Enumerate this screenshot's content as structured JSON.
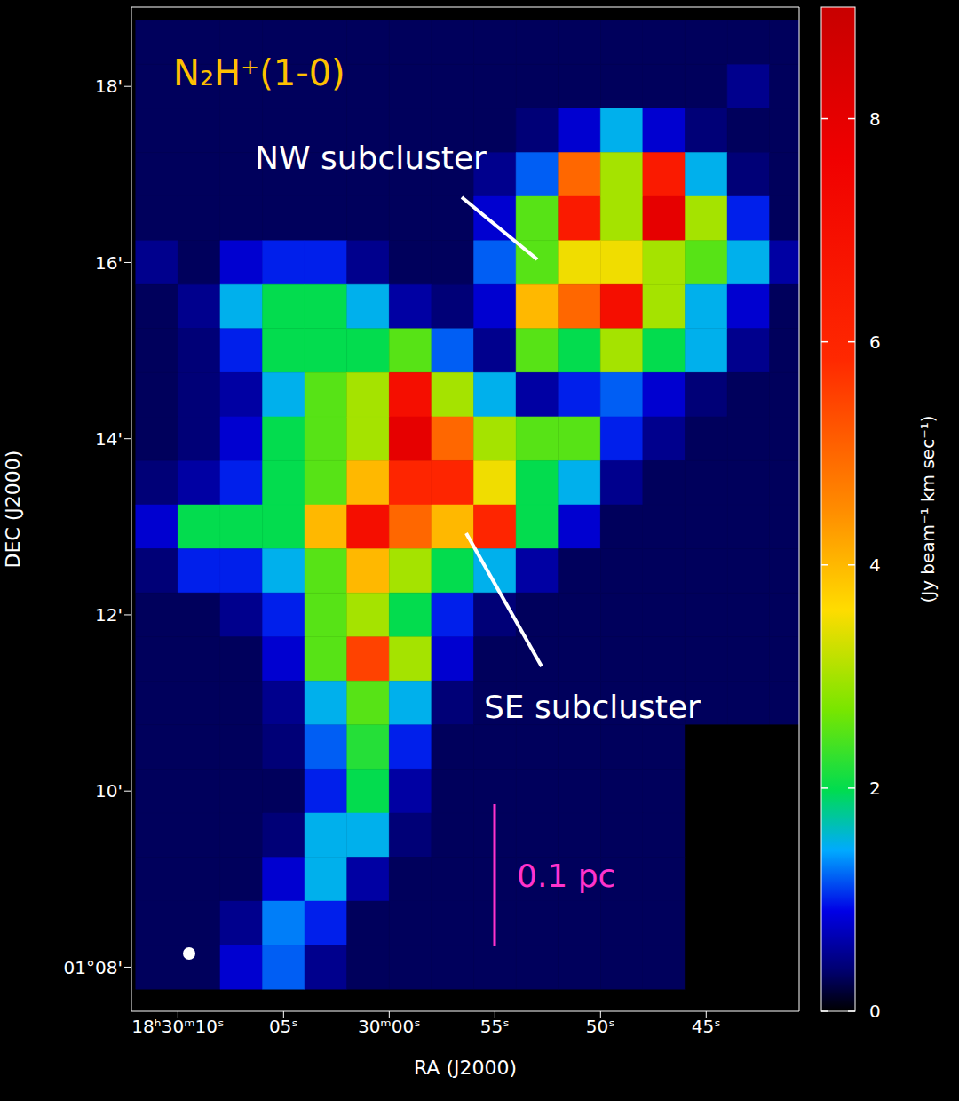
{
  "chart_data": {
    "type": "heatmap",
    "title": "N₂H⁺(1-0)",
    "x_label": "RA (J2000)",
    "y_label": "DEC (J2000)",
    "xlim": [
      72.2,
      40.6
    ],
    "ylim": [
      7.5,
      18.9
    ],
    "xticks": [
      {
        "value": 70,
        "label": "18ʰ30ᵐ10ˢ"
      },
      {
        "value": 65,
        "label": "05ˢ"
      },
      {
        "value": 60,
        "label": "30ᵐ00ˢ"
      },
      {
        "value": 55,
        "label": "55ˢ"
      },
      {
        "value": 50,
        "label": "50ˢ"
      },
      {
        "value": 45,
        "label": "45ˢ"
      }
    ],
    "yticks": [
      {
        "value": 8,
        "label": "01°08'"
      },
      {
        "value": 10,
        "label": "10'"
      },
      {
        "value": 12,
        "label": "12'"
      },
      {
        "value": 14,
        "label": "14'"
      },
      {
        "value": 16,
        "label": "16'"
      },
      {
        "value": 18,
        "label": "18'"
      }
    ],
    "x": [
      71,
      69,
      67,
      65,
      63,
      61,
      59,
      57,
      55,
      53,
      51,
      49,
      47,
      45,
      43,
      41
    ],
    "y": [
      18.5,
      18,
      17.5,
      17,
      16.5,
      16,
      15.5,
      15,
      14.5,
      14,
      13.5,
      13,
      12.5,
      12,
      11.5,
      11,
      10.5,
      10,
      9.5,
      9,
      8.5,
      8
    ],
    "cells": [
      [
        0.3,
        0.3,
        0.3,
        0.3,
        0.3,
        0.3,
        0.3,
        0.3,
        0.3,
        0.3,
        0.3,
        0.3,
        0.3,
        0.3,
        0.3,
        0.3
      ],
      [
        0.3,
        0.3,
        0.3,
        0.3,
        0.3,
        0.3,
        0.3,
        0.3,
        0.3,
        0.3,
        0.3,
        0.3,
        0.3,
        0.3,
        0.5,
        0.3
      ],
      [
        0.3,
        0.3,
        0.3,
        0.3,
        0.3,
        0.3,
        0.3,
        0.3,
        0.3,
        0.4,
        0.8,
        1.5,
        0.8,
        0.4,
        0.3,
        0.3
      ],
      [
        0.3,
        0.3,
        0.3,
        0.3,
        0.3,
        0.3,
        0.3,
        0.3,
        0.5,
        1.2,
        5,
        3,
        6.5,
        1.5,
        0.4,
        0.3
      ],
      [
        0.3,
        0.3,
        0.3,
        0.3,
        0.3,
        0.3,
        0.3,
        0.3,
        0.8,
        2.5,
        6.5,
        3,
        8,
        3,
        1,
        0.3
      ],
      [
        0.5,
        0.3,
        0.8,
        1,
        1,
        0.5,
        0.3,
        0.3,
        1.2,
        2.5,
        3.5,
        3.5,
        3,
        2.5,
        1.5,
        0.6
      ],
      [
        0.3,
        0.5,
        1.5,
        2,
        2,
        1.5,
        0.6,
        0.4,
        0.8,
        4,
        5,
        7,
        3,
        1.5,
        0.8,
        0.3
      ],
      [
        0.3,
        0.4,
        1,
        2,
        2,
        2,
        2.5,
        1.2,
        0.5,
        2.5,
        2,
        3,
        2,
        1.5,
        0.5,
        0.3
      ],
      [
        0.3,
        0.4,
        0.6,
        1.5,
        2.5,
        3,
        7,
        3,
        1.5,
        0.6,
        1,
        1.2,
        0.8,
        0.4,
        0.3,
        0.3
      ],
      [
        0.3,
        0.4,
        0.8,
        2,
        2.5,
        3,
        8,
        5,
        3,
        2.5,
        2.5,
        1,
        0.5,
        0.3,
        0.3,
        0.3
      ],
      [
        0.4,
        0.6,
        1,
        2,
        2.5,
        4,
        6,
        6,
        3.5,
        2,
        1.5,
        0.5,
        0.3,
        0.3,
        0.3,
        0.3
      ],
      [
        0.8,
        2,
        2,
        2,
        4,
        7,
        5,
        4,
        6,
        2,
        0.8,
        0.3,
        0.3,
        0.3,
        0.3,
        0.3
      ],
      [
        0.4,
        1,
        1,
        1.5,
        2.5,
        4,
        3,
        2,
        1.5,
        0.6,
        0.3,
        0.3,
        0.3,
        0.3,
        0.3,
        0.3
      ],
      [
        0.3,
        0.3,
        0.5,
        1,
        2.5,
        3,
        2,
        1,
        0.4,
        0.3,
        0.3,
        0.3,
        0.3,
        0.3,
        0.3,
        0.3
      ],
      [
        0.3,
        0.3,
        0.3,
        0.8,
        2.5,
        5.5,
        3,
        0.8,
        0.3,
        0.3,
        0.3,
        0.3,
        0.3,
        0.3,
        0.3,
        0.3
      ],
      [
        0.3,
        0.3,
        0.3,
        0.5,
        1.5,
        2.5,
        1.5,
        0.4,
        0.3,
        0.3,
        0.3,
        0.3,
        0.3,
        0.3,
        0.3,
        0.3
      ],
      [
        0.3,
        0.3,
        0.3,
        0.4,
        1.2,
        2.2,
        1,
        0.3,
        0.3,
        0.3,
        0.3,
        0.3,
        0.3,
        0,
        0,
        0
      ],
      [
        0.3,
        0.3,
        0.3,
        0.3,
        1,
        2,
        0.6,
        0.3,
        0.3,
        0.3,
        0.3,
        0.3,
        0.3,
        0,
        0,
        0
      ],
      [
        0.3,
        0.3,
        0.3,
        0.4,
        1.5,
        1.5,
        0.4,
        0.3,
        0.3,
        0.3,
        0.3,
        0.3,
        0.3,
        0,
        0,
        0
      ],
      [
        0.3,
        0.3,
        0.3,
        0.8,
        1.5,
        0.6,
        0.3,
        0.3,
        0.3,
        0.3,
        0.3,
        0.3,
        0.3,
        0,
        0,
        0
      ],
      [
        0.3,
        0.3,
        0.5,
        1.3,
        1,
        0.3,
        0.3,
        0.3,
        0.3,
        0.3,
        0.3,
        0.3,
        0.3,
        0,
        0,
        0
      ],
      [
        0.3,
        0.3,
        0.8,
        1.2,
        0.5,
        0.3,
        0.3,
        0.3,
        0.3,
        0.3,
        0.3,
        0.3,
        0.3,
        0,
        0,
        0
      ]
    ],
    "colorbar": {
      "label": "(Jy beam⁻¹ km sec⁻¹)",
      "range": [
        0,
        9
      ],
      "ticks": [
        0,
        2,
        4,
        6,
        8
      ]
    },
    "annotations": [
      "NW subcluster",
      "SE subcluster",
      "0.1 pc"
    ],
    "grid": false
  }
}
